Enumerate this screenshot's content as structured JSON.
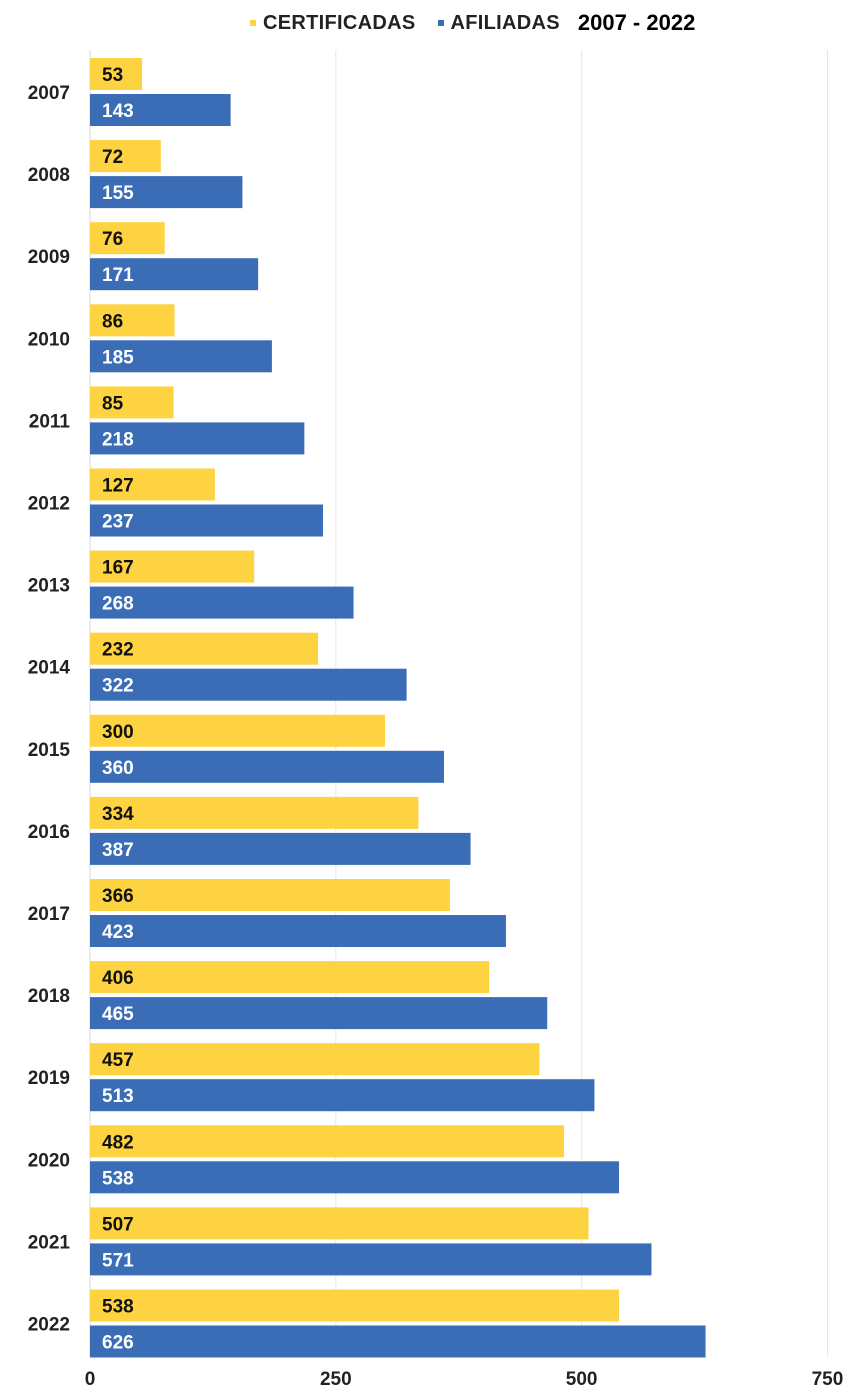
{
  "legend": {
    "certificadas": "CERTIFICADAS",
    "afiliadas": "AFILIADAS",
    "period": "2007 - 2022"
  },
  "colors": {
    "certificadas": "#FDD341",
    "afiliadas": "#3A6DB5",
    "grid": "#E6E6E6"
  },
  "chart_data": {
    "type": "bar",
    "orientation": "horizontal",
    "categories": [
      "2007",
      "2008",
      "2009",
      "2010",
      "2011",
      "2012",
      "2013",
      "2014",
      "2015",
      "2016",
      "2017",
      "2018",
      "2019",
      "2020",
      "2021",
      "2022"
    ],
    "series": [
      {
        "name": "CERTIFICADAS",
        "values": [
          53,
          72,
          76,
          86,
          85,
          127,
          167,
          232,
          300,
          334,
          366,
          406,
          457,
          482,
          507,
          538
        ]
      },
      {
        "name": "AFILIADAS",
        "values": [
          143,
          155,
          171,
          185,
          218,
          237,
          268,
          322,
          360,
          387,
          423,
          465,
          513,
          538,
          571,
          626
        ]
      }
    ],
    "xlim": [
      0,
      750
    ],
    "xticks": [
      "0",
      "250",
      "500",
      "750"
    ],
    "grid": true,
    "legend_position": "top"
  }
}
